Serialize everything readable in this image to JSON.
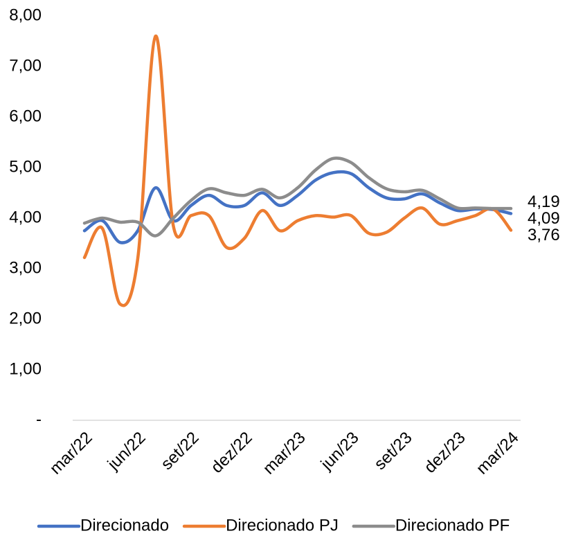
{
  "chart_data": {
    "type": "line",
    "categories": [
      "mar/22",
      null,
      null,
      "jun/22",
      null,
      null,
      "set/22",
      null,
      null,
      "dez/22",
      null,
      null,
      "mar/23",
      null,
      null,
      "jun/23",
      null,
      null,
      "set/23",
      null,
      null,
      "dez/23",
      null,
      null,
      "mar/24"
    ],
    "ylim": [
      0,
      8
    ],
    "yticks": [
      {
        "value": 0,
        "label": "-"
      },
      {
        "value": 1,
        "label": "1,00"
      },
      {
        "value": 2,
        "label": "2,00"
      },
      {
        "value": 3,
        "label": "3,00"
      },
      {
        "value": 4,
        "label": "4,00"
      },
      {
        "value": 5,
        "label": "5,00"
      },
      {
        "value": 6,
        "label": "6,00"
      },
      {
        "value": 7,
        "label": "7,00"
      },
      {
        "value": 8,
        "label": "8,00"
      }
    ],
    "grid": false,
    "legend": "bottom",
    "series": [
      {
        "name": "Direcionado",
        "color": "#4472c4",
        "values": [
          3.75,
          3.95,
          3.52,
          3.75,
          4.6,
          3.95,
          4.25,
          4.45,
          4.25,
          4.25,
          4.5,
          4.25,
          4.45,
          4.75,
          4.9,
          4.88,
          4.6,
          4.4,
          4.38,
          4.48,
          4.3,
          4.15,
          4.18,
          4.17,
          4.09
        ],
        "value_labels": [
          null,
          null,
          null,
          null,
          null,
          null,
          null,
          null,
          null,
          null,
          null,
          null,
          null,
          null,
          null,
          null,
          null,
          null,
          null,
          null,
          null,
          null,
          null,
          null,
          "4,09"
        ]
      },
      {
        "name": "Direcionado PJ",
        "color": "#ed7d31",
        "values": [
          3.22,
          3.8,
          2.3,
          3.2,
          7.6,
          3.85,
          4.05,
          4.05,
          3.42,
          3.6,
          4.15,
          3.75,
          3.95,
          4.05,
          4.02,
          4.05,
          3.7,
          3.72,
          4.0,
          4.2,
          3.88,
          3.95,
          4.05,
          4.18,
          3.76
        ],
        "value_labels": [
          null,
          null,
          null,
          null,
          null,
          null,
          null,
          null,
          null,
          null,
          null,
          null,
          null,
          null,
          null,
          null,
          null,
          null,
          null,
          null,
          null,
          null,
          null,
          null,
          "3,76"
        ]
      },
      {
        "name": "Direcionado PF",
        "color": "#8c8c8c",
        "values": [
          3.9,
          4.0,
          3.92,
          3.92,
          3.65,
          4.0,
          4.35,
          4.58,
          4.5,
          4.45,
          4.57,
          4.4,
          4.6,
          4.95,
          5.18,
          5.1,
          4.8,
          4.58,
          4.52,
          4.55,
          4.38,
          4.2,
          4.2,
          4.19,
          4.19
        ],
        "value_labels": [
          null,
          null,
          null,
          null,
          null,
          null,
          null,
          null,
          null,
          null,
          null,
          null,
          null,
          null,
          null,
          null,
          null,
          null,
          null,
          null,
          null,
          null,
          null,
          null,
          "4,19"
        ]
      }
    ]
  }
}
